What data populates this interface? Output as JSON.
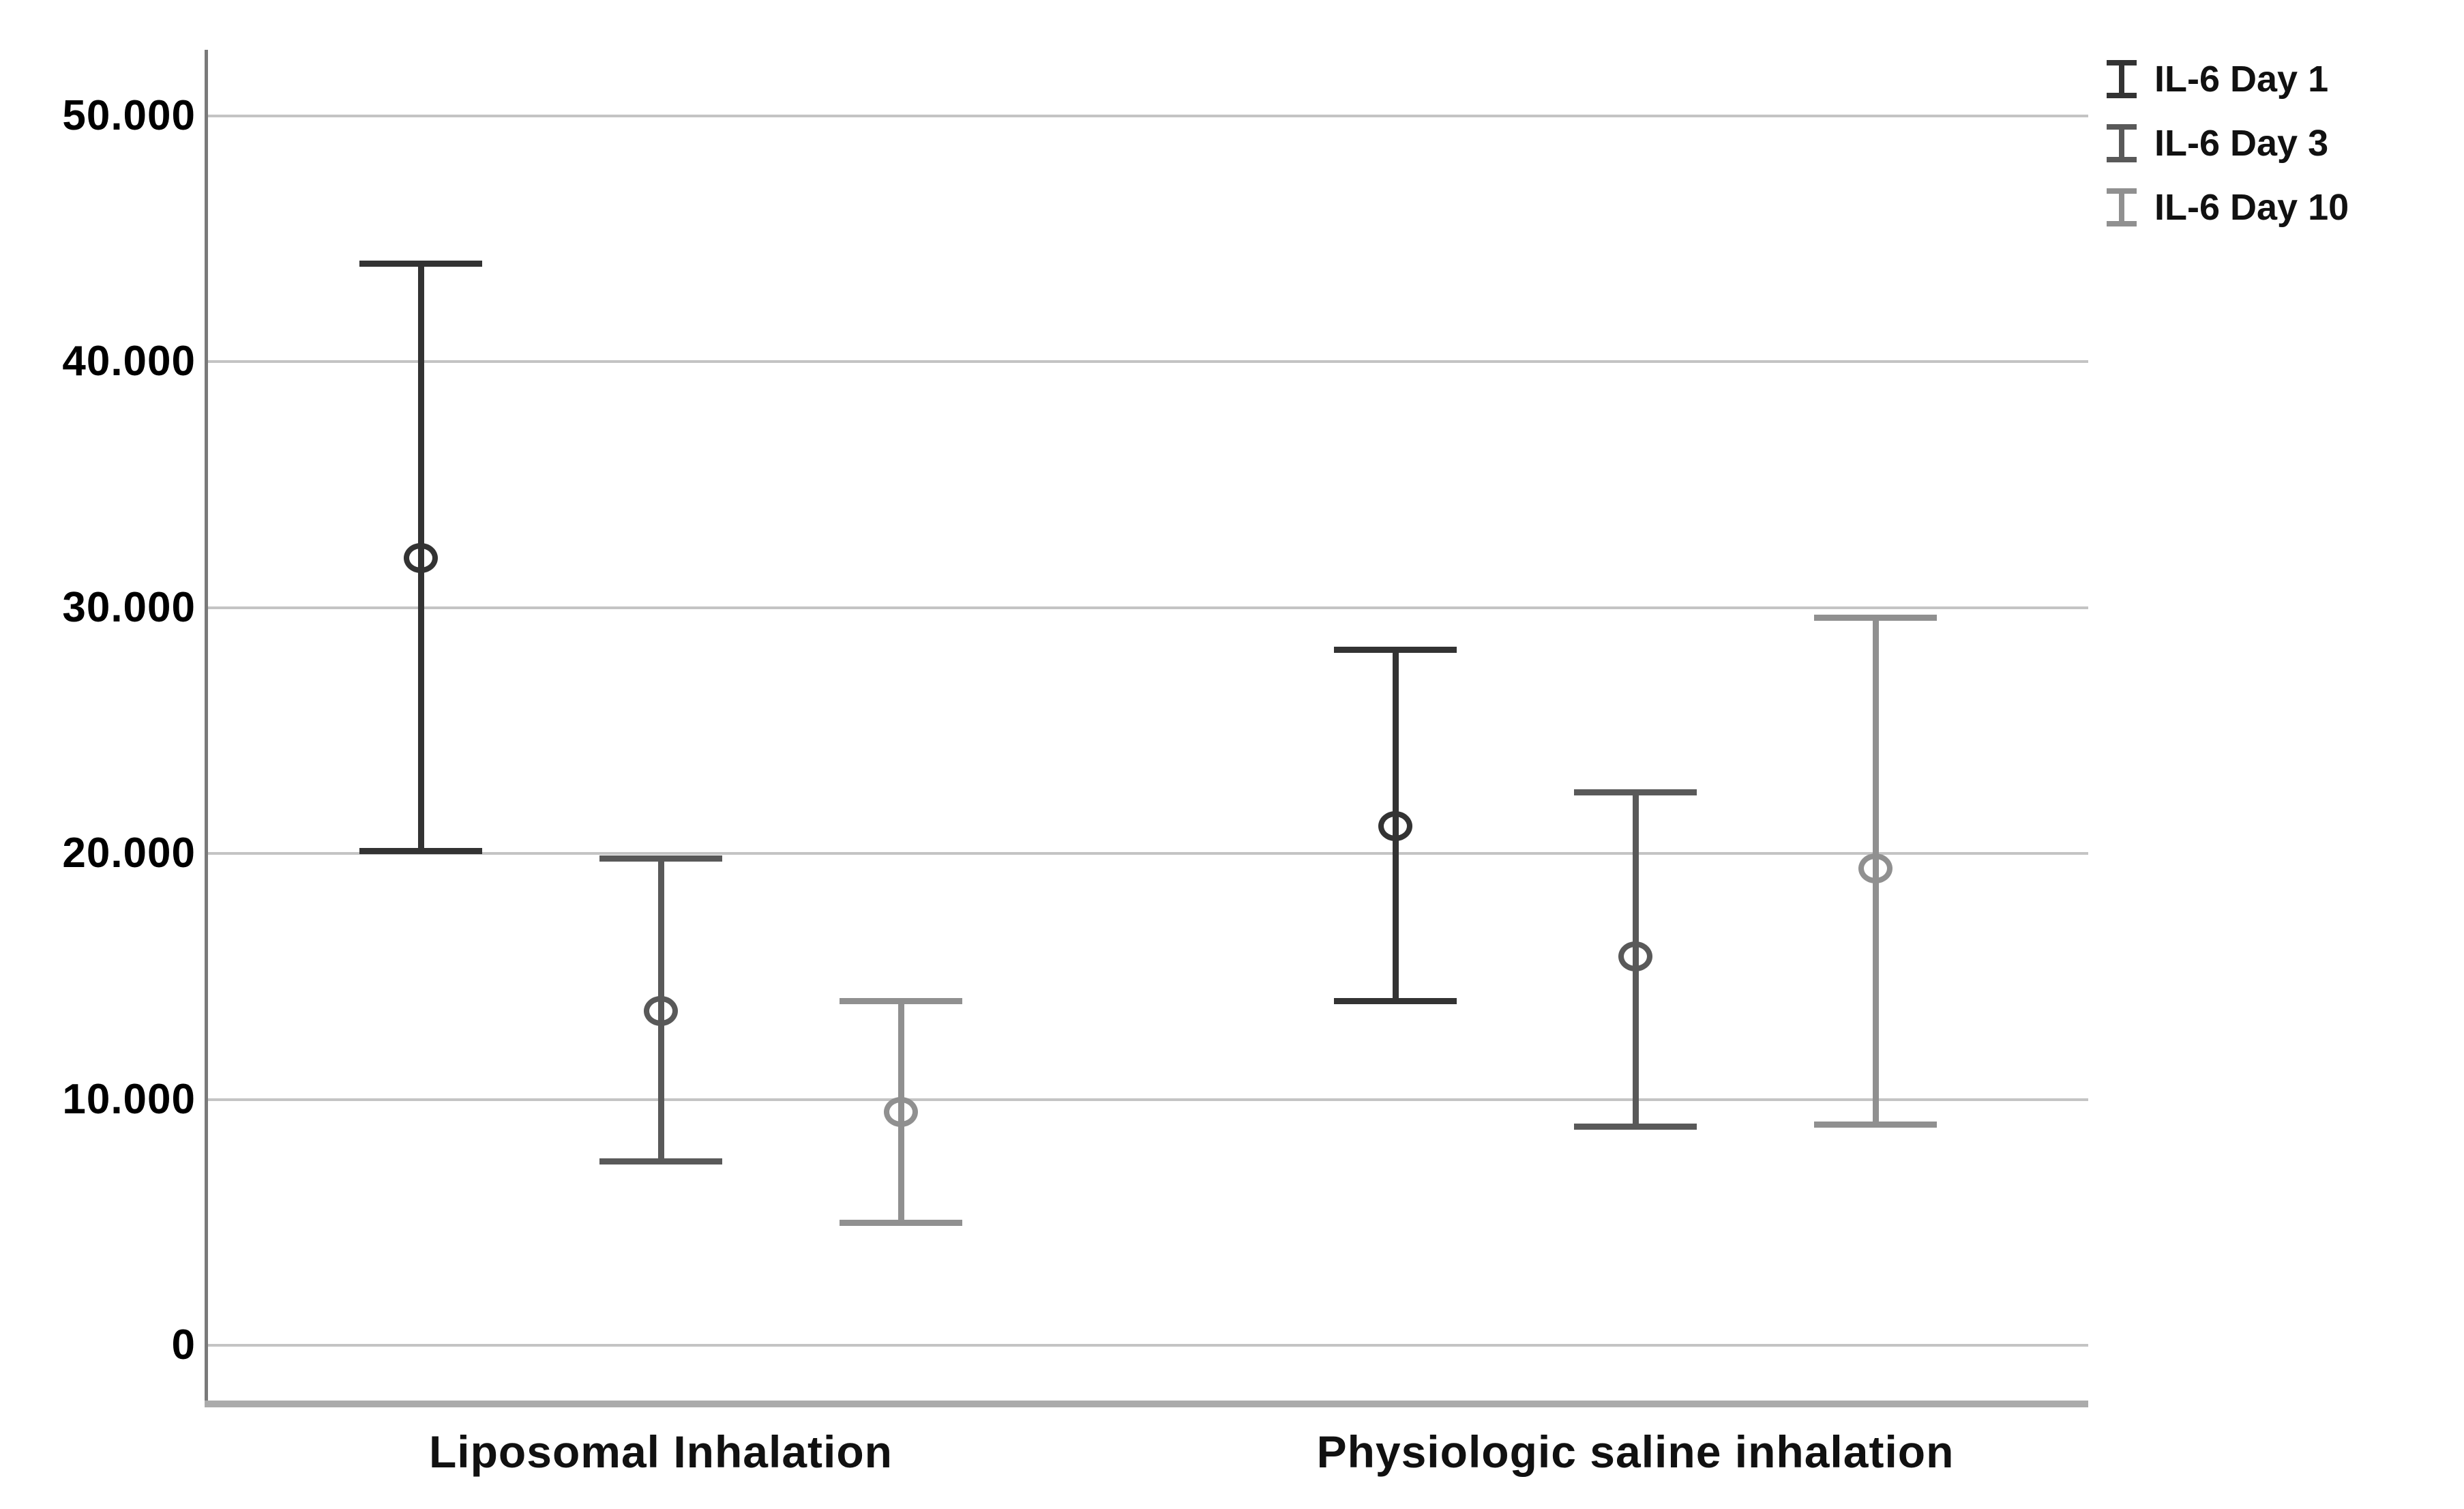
{
  "chart_data": {
    "type": "errorbar",
    "title": "",
    "xlabel": "",
    "ylabel": "",
    "groups": [
      "Liposomal Inhalation",
      "Physiologic saline inhalation"
    ],
    "series": [
      {
        "name": "IL-6 Day 1",
        "color": "#333333",
        "points": [
          {
            "group": "Liposomal Inhalation",
            "mean": 32000,
            "ci_low": 20100,
            "ci_high": 44000
          },
          {
            "group": "Physiologic saline inhalation",
            "mean": 21100,
            "ci_low": 14000,
            "ci_high": 28300
          }
        ]
      },
      {
        "name": "IL-6 Day 3",
        "color": "#595959",
        "points": [
          {
            "group": "Liposomal Inhalation",
            "mean": 13600,
            "ci_low": 7500,
            "ci_high": 19800
          },
          {
            "group": "Physiologic saline inhalation",
            "mean": 15800,
            "ci_low": 8900,
            "ci_high": 22500
          }
        ]
      },
      {
        "name": "IL-6 Day 10",
        "color": "#909090",
        "points": [
          {
            "group": "Liposomal Inhalation",
            "mean": 9500,
            "ci_low": 5000,
            "ci_high": 14000
          },
          {
            "group": "Physiologic saline inhalation",
            "mean": 19400,
            "ci_low": 9000,
            "ci_high": 29600
          }
        ]
      }
    ],
    "y_axis": {
      "ticks": [
        {
          "value": 0,
          "label": "0"
        },
        {
          "value": 10000,
          "label": "10.000"
        },
        {
          "value": 20000,
          "label": "20.000"
        },
        {
          "value": 30000,
          "label": "30.000"
        },
        {
          "value": 40000,
          "label": "40.000"
        },
        {
          "value": 50000,
          "label": "50.000"
        }
      ],
      "range": [
        -2500,
        52600
      ],
      "gridlines": true
    },
    "legend": {
      "position": "top-right",
      "entries": [
        "IL-6 Day 1",
        "IL-6 Day 3",
        "IL-6 Day 10"
      ],
      "marker": "error-bar-icon"
    },
    "point_marker": "open-circle"
  },
  "colors": {
    "background": "#ffffff",
    "gridline": "#c4c4c4",
    "y_axis_line": "#7a7a7a",
    "x_axis_line": "#ababab",
    "tick_text": "#000000",
    "label_text": "#111111"
  }
}
